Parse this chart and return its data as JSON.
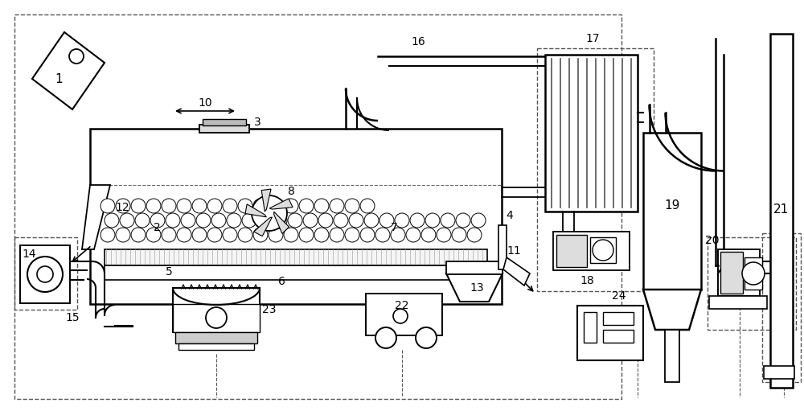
{
  "bg": "#ffffff",
  "lc": "#000000",
  "dc": "#555555",
  "gray": "#888888",
  "lgray": "#cccccc",
  "dgray": "#444444"
}
